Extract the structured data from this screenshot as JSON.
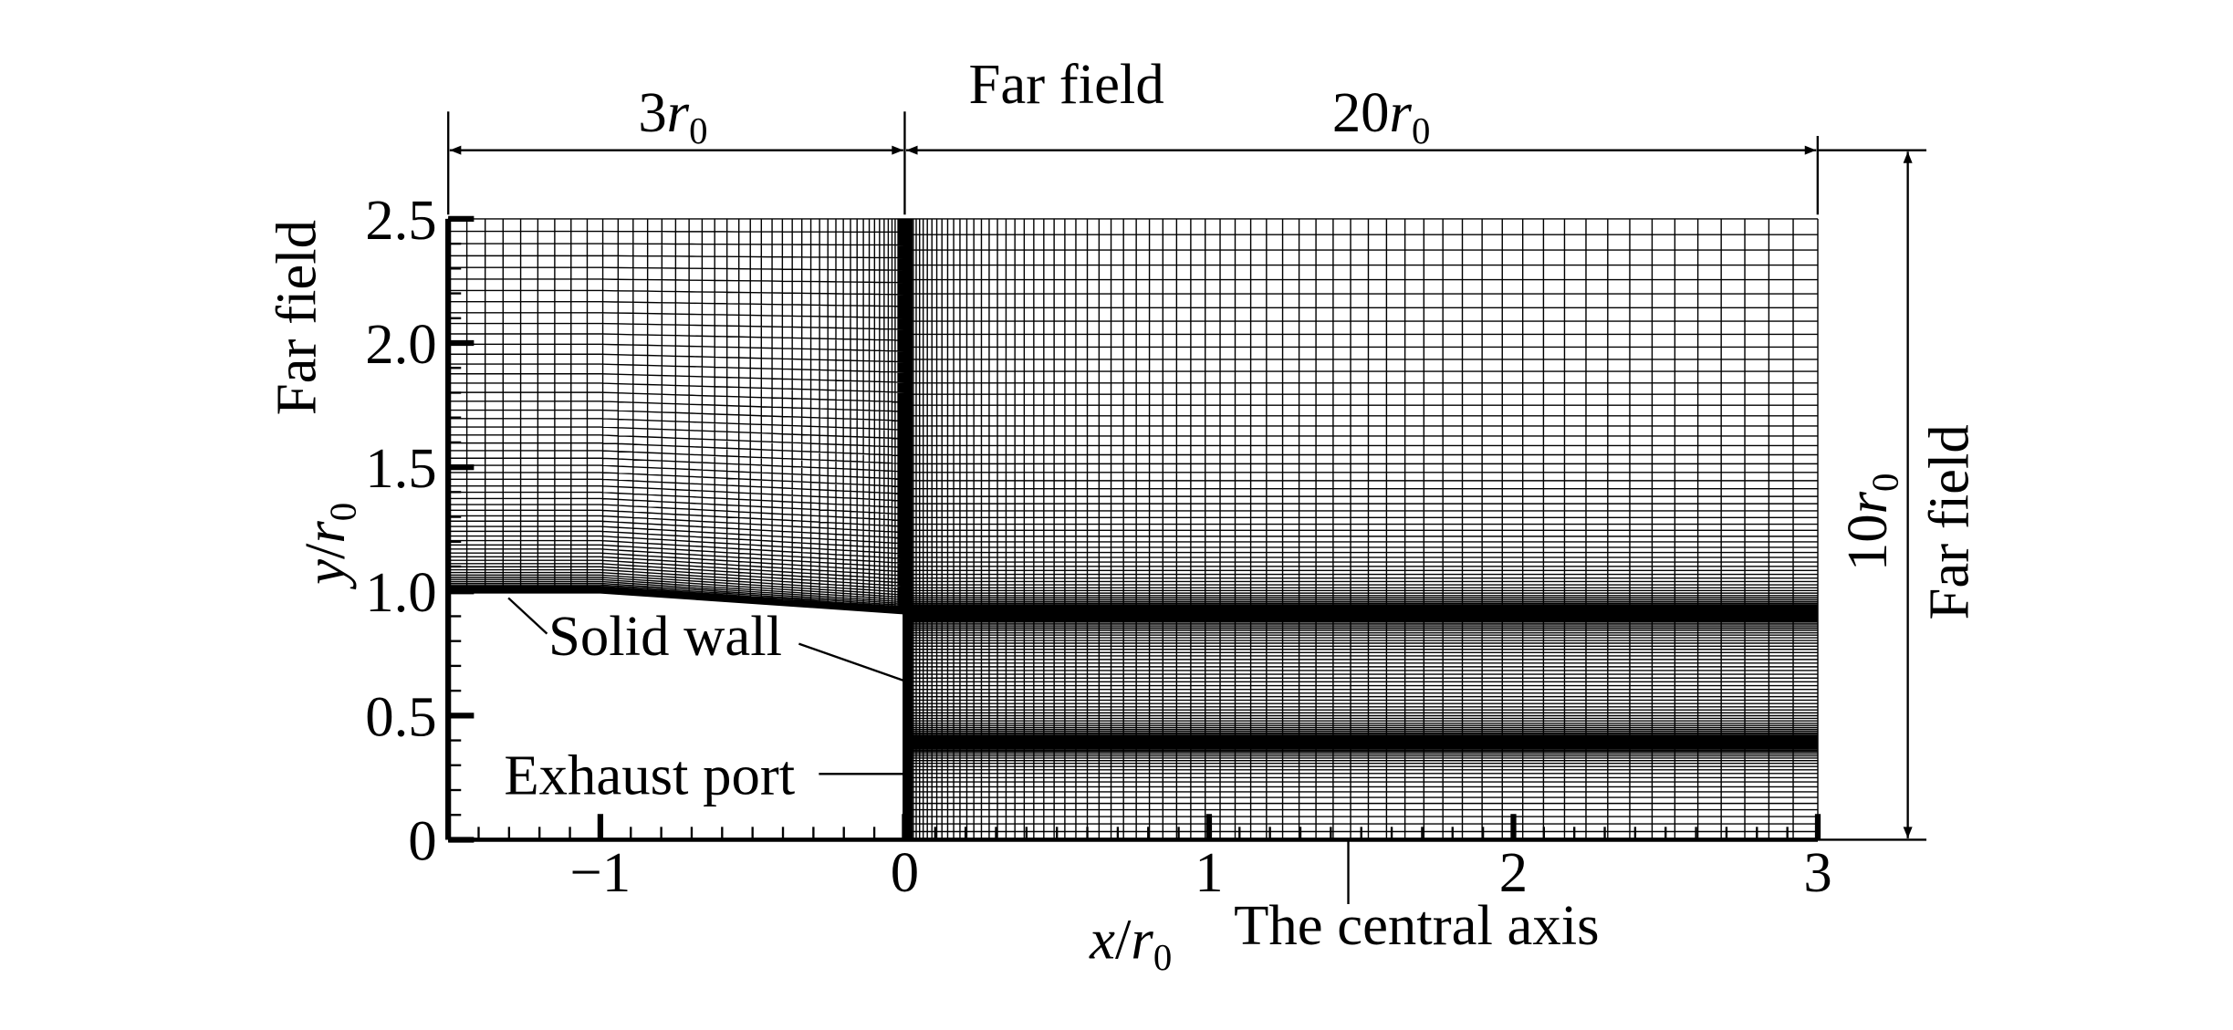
{
  "top_label": "Far field",
  "left_label": "Far field",
  "right_label": "Far field",
  "dim_left": [
    "3",
    "r",
    "0"
  ],
  "dim_right": [
    "20",
    "r",
    "0"
  ],
  "dim_height": [
    "10",
    "r",
    "0"
  ],
  "y_axis_label": [
    "y",
    "/",
    "r",
    "0"
  ],
  "x_axis_label": [
    "x",
    "/",
    "r",
    "0"
  ],
  "annotations": {
    "solid_wall": "Solid wall",
    "exhaust_port": "Exhaust port",
    "central_axis": "The central axis"
  },
  "x_ticks": [
    {
      "value": -1,
      "label": "−1"
    },
    {
      "value": 0,
      "label": "0"
    },
    {
      "value": 1,
      "label": "1"
    },
    {
      "value": 2,
      "label": "2"
    },
    {
      "value": 3,
      "label": "3"
    }
  ],
  "y_ticks": [
    {
      "value": 0,
      "label": "0"
    },
    {
      "value": 0.5,
      "label": "0.5"
    },
    {
      "value": 1,
      "label": "1.0"
    },
    {
      "value": 1.5,
      "label": "1.5"
    },
    {
      "value": 2,
      "label": "2.0"
    },
    {
      "value": 2.5,
      "label": "2.5"
    }
  ]
}
